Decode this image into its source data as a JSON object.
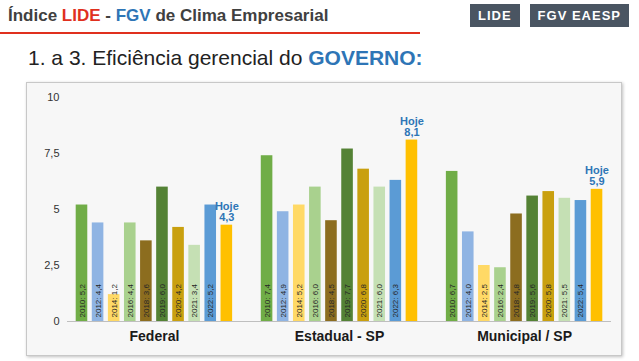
{
  "chart_data": {
    "type": "bar",
    "title": "Índice LIDE - FGV de Clima Empresarial",
    "subtitle": "1. a 3. Eficiência gerencial do GOVERNO:",
    "logos": [
      "LIDE",
      "FGV EAESP"
    ],
    "categories": [
      "Federal",
      "Estadual - SP",
      "Municipal / SP"
    ],
    "series": [
      {
        "name": "2010",
        "color": "#70ad47",
        "values": [
          5.2,
          7.4,
          6.7
        ],
        "value_labels": [
          "2010: 5,2",
          "2010: 7,4",
          "2010: 6,7"
        ]
      },
      {
        "name": "2012",
        "color": "#8fb4e3",
        "values": [
          4.4,
          4.9,
          4.0
        ],
        "value_labels": [
          "2012: 4,4",
          "2012: 4,9",
          "2012: 4,0"
        ]
      },
      {
        "name": "2014",
        "color": "#ffd966",
        "values": [
          1.2,
          5.2,
          2.5
        ],
        "value_labels": [
          "2014: 1,2",
          "2014: 5,2",
          "2014: 2,5"
        ]
      },
      {
        "name": "2016",
        "color": "#a9d18e",
        "values": [
          4.4,
          6.0,
          2.4
        ],
        "value_labels": [
          "2016: 4,4",
          "2016: 6,0",
          "2016: 2,4"
        ]
      },
      {
        "name": "2018",
        "color": "#8c6d1f",
        "values": [
          3.6,
          4.5,
          4.8
        ],
        "value_labels": [
          "2018: 3,6",
          "2018: 4,5",
          "2018: 4,8"
        ]
      },
      {
        "name": "2019",
        "color": "#548235",
        "values": [
          6.0,
          7.7,
          5.6
        ],
        "value_labels": [
          "2019: 6,0",
          "2019: 7,7",
          "2019: 5,6"
        ]
      },
      {
        "name": "2020",
        "color": "#c9a00f",
        "values": [
          4.2,
          6.8,
          5.8
        ],
        "value_labels": [
          "2020: 4,2",
          "2020: 6,8",
          "2020: 5,8"
        ]
      },
      {
        "name": "2021",
        "color": "#c5e0b4",
        "values": [
          3.4,
          6.0,
          5.5
        ],
        "value_labels": [
          "2021: 3,4",
          "2021: 6,0",
          "2021: 5,5"
        ]
      },
      {
        "name": "2022",
        "color": "#5b9bd5",
        "values": [
          5.2,
          6.3,
          5.4
        ],
        "value_labels": [
          "2022: 5,2",
          "2022: 6,3",
          "2022: 5,4"
        ]
      },
      {
        "name": "Hoje",
        "color": "#ffc000",
        "values": [
          4.3,
          8.1,
          5.9
        ],
        "value_labels": [
          "4,3",
          "8,1",
          "5,9"
        ]
      }
    ],
    "ylim": [
      0,
      10
    ],
    "yticks": [
      0,
      {
        "value": 2.5,
        "label": "2,5"
      },
      5,
      {
        "value": 7.5,
        "label": "7,5"
      },
      10
    ],
    "grid": false,
    "data_labels": true
  }
}
